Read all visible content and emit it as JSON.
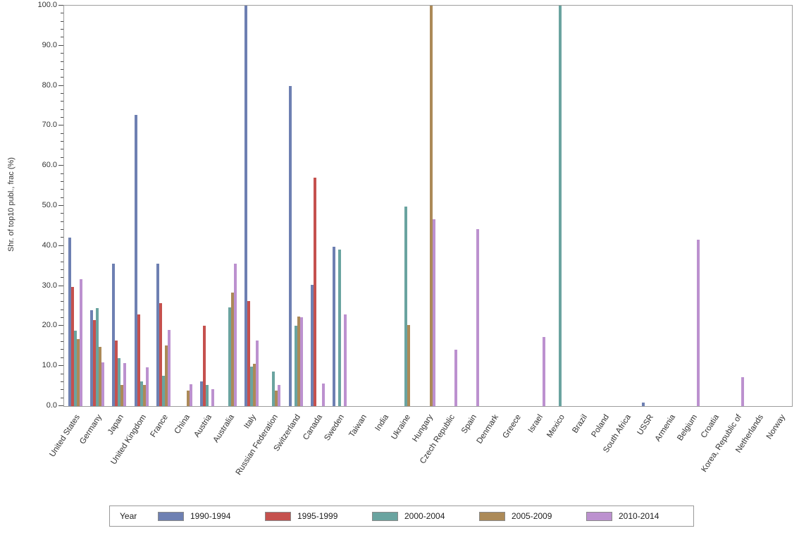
{
  "chart_data": {
    "type": "bar",
    "title": "",
    "xlabel": "",
    "ylabel": "Shr. of top10 publ., frac (%)",
    "ylim": [
      0,
      100
    ],
    "ytick_step": 10,
    "ytick_minor_step": 2,
    "ytick_labels": [
      "0.0",
      "10.0",
      "20.0",
      "30.0",
      "40.0",
      "50.0",
      "60.0",
      "70.0",
      "80.0",
      "90.0",
      "100.0"
    ],
    "grid": false,
    "legend_title": "Year",
    "legend_position": "bottom",
    "categories": [
      "United States",
      "Germany",
      "Japan",
      "United Kingdom",
      "France",
      "China",
      "Austria",
      "Australia",
      "Italy",
      "Russian Federation",
      "Switzerland",
      "Canada",
      "Sweden",
      "Taiwan",
      "India",
      "Ukraine",
      "Hungary",
      "Czech Republic",
      "Spain",
      "Denmark",
      "Greece",
      "Israel",
      "Mexico",
      "Brazil",
      "Poland",
      "South Africa",
      "USSR",
      "Armenia",
      "Belgium",
      "Croatia",
      "Korea, Republic of",
      "Netherlands",
      "Norway"
    ],
    "series": [
      {
        "name": "1990-1994",
        "color": "#6e80b2",
        "values": [
          42.0,
          23.9,
          35.5,
          72.8,
          35.5,
          0,
          6.2,
          0,
          100.0,
          0,
          80.0,
          30.2,
          39.8,
          0,
          0,
          0,
          0,
          0,
          0,
          0,
          0,
          0,
          0,
          0,
          0,
          0,
          0.8,
          0,
          0,
          0,
          0,
          0,
          0
        ]
      },
      {
        "name": "1995-1999",
        "color": "#c5514e",
        "values": [
          29.8,
          21.5,
          16.4,
          22.9,
          25.7,
          0,
          20.0,
          0,
          26.3,
          0,
          0,
          57.0,
          0,
          0,
          0,
          0,
          0,
          0,
          0,
          0,
          0,
          0,
          0,
          0,
          0,
          0,
          0,
          0,
          0,
          0,
          0,
          0,
          0
        ]
      },
      {
        "name": "2000-2004",
        "color": "#6aa4a0",
        "values": [
          18.8,
          24.5,
          11.9,
          6.2,
          7.5,
          0,
          5.2,
          24.7,
          9.8,
          8.6,
          20.1,
          0,
          39.0,
          0,
          0,
          49.8,
          0,
          0,
          0,
          0,
          0,
          0,
          100.0,
          0,
          0,
          0,
          0,
          0,
          0,
          0,
          0,
          0,
          0
        ]
      },
      {
        "name": "2005-2009",
        "color": "#ac8a58",
        "values": [
          16.7,
          14.8,
          5.2,
          5.2,
          15.1,
          3.9,
          0,
          28.3,
          10.5,
          3.9,
          22.4,
          0,
          0,
          0,
          0,
          20.3,
          100.0,
          0,
          0,
          0,
          0,
          0,
          0,
          0,
          0,
          0,
          0,
          0,
          0,
          0,
          0,
          0,
          0
        ]
      },
      {
        "name": "2010-2014",
        "color": "#bc91cf",
        "values": [
          31.7,
          11.0,
          10.7,
          9.7,
          19.0,
          5.5,
          4.2,
          35.5,
          16.3,
          5.3,
          22.2,
          5.7,
          22.9,
          0,
          0,
          0,
          46.7,
          14.1,
          44.2,
          0,
          0,
          17.2,
          0,
          0,
          0,
          0,
          0,
          0,
          41.5,
          0,
          7.3,
          0,
          0
        ]
      }
    ]
  }
}
